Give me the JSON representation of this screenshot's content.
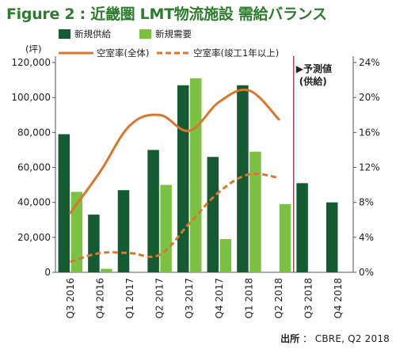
{
  "title": "Figure 2 : 近畿圏 LMT物流施設 需給バランス",
  "source": {
    "label": "出所",
    "separator": "：",
    "value": "CBRE, Q2 2018"
  },
  "colors": {
    "supply": "#145a32",
    "demand": "#7cc242",
    "vacancy_all": "#d9772c",
    "vacancy_new": "#d9772c",
    "forecast_line": "#8b1a2e",
    "title": "#2e7d2e"
  },
  "chart_data": {
    "type": "bar",
    "title": "",
    "y_left_unit": "(坪)",
    "ylim_left": [
      0,
      120000
    ],
    "yticks_left": [
      "0",
      "20,000",
      "40,000",
      "60,000",
      "80,000",
      "100,000",
      "120,000"
    ],
    "yticks_left_values": [
      0,
      20000,
      40000,
      60000,
      80000,
      100000,
      120000
    ],
    "ylim_right": [
      0,
      24
    ],
    "yticks_right": [
      "0%",
      "4%",
      "8%",
      "12%",
      "16%",
      "20%",
      "24%"
    ],
    "yticks_right_values": [
      0,
      4,
      8,
      12,
      16,
      20,
      24
    ],
    "categories": [
      "Q3 2016",
      "Q4 2016",
      "Q1 2017",
      "Q2 2017",
      "Q3 2017",
      "Q4 2017",
      "Q1 2018",
      "Q2 2018",
      "Q3 2018",
      "Q4 2018"
    ],
    "series": [
      {
        "name": "新規供給",
        "kind": "bar",
        "axis": "left",
        "values": [
          79000,
          33000,
          47000,
          70000,
          107000,
          66000,
          107000,
          null,
          51000,
          40000
        ]
      },
      {
        "name": "新規需要",
        "kind": "bar",
        "axis": "left",
        "values": [
          46000,
          2000,
          null,
          50000,
          111000,
          19000,
          69000,
          39000,
          null,
          null
        ]
      },
      {
        "name": "空室率(全体)",
        "kind": "line",
        "style": "solid",
        "axis": "right",
        "values": [
          6.8,
          11.5,
          16.8,
          18.0,
          16.2,
          19.5,
          20.8,
          17.5,
          null,
          null
        ]
      },
      {
        "name": "空室率(竣工1年以上)",
        "kind": "line",
        "style": "dashed",
        "axis": "right",
        "values": [
          1.2,
          2.2,
          2.2,
          2.0,
          5.6,
          9.2,
          11.2,
          10.8,
          null,
          null
        ]
      }
    ],
    "forecast_label_line1": "▶予測値",
    "forecast_label_line2": "(供給)",
    "forecast_start_category": "Q3 2018",
    "grid": false,
    "legend_position": "top"
  }
}
